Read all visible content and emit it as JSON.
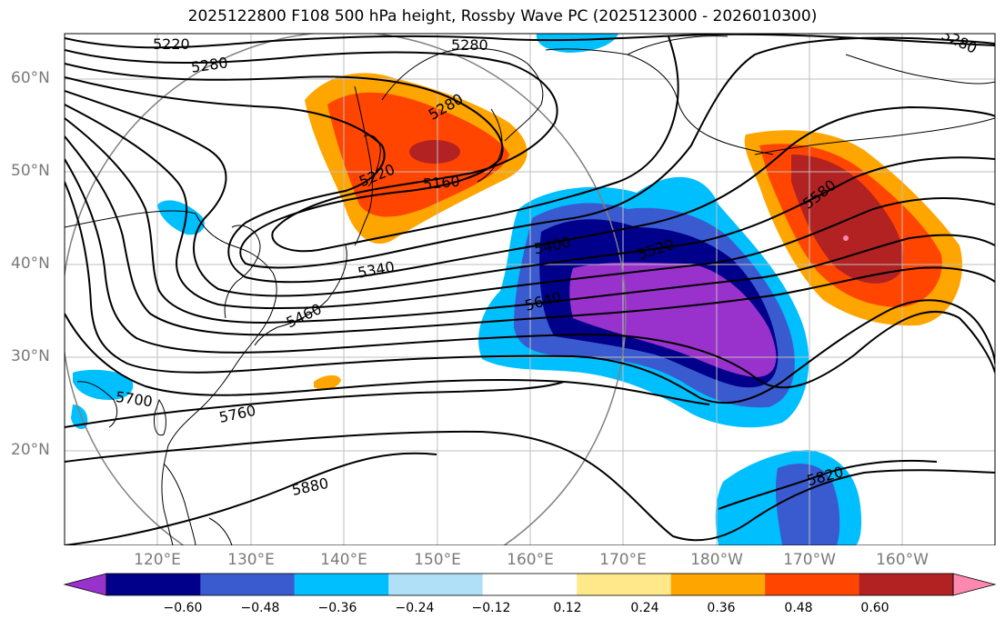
{
  "title": "2025122800 F108 500 hPa height, Rossby Wave PC (2025123000 - 2026010300)",
  "lat_labels": [
    "60°N",
    "50°N",
    "40°N",
    "30°N",
    "20°N"
  ],
  "lon_labels": [
    "120°E",
    "130°E",
    "140°E",
    "150°E",
    "160°E",
    "170°E",
    "180°W",
    "170°W",
    "160°W"
  ],
  "contour_labels": [
    "5220",
    "5280",
    "5280",
    "5280",
    "5280",
    "5220",
    "5160",
    "5400",
    "5520",
    "5340",
    "5580",
    "5640",
    "5460",
    "5700",
    "5760",
    "5880",
    "5820"
  ],
  "colorbar": {
    "ticks": [
      "−0.60",
      "−0.48",
      "−0.36",
      "−0.24",
      "−0.12",
      "0.12",
      "0.24",
      "0.36",
      "0.48",
      "0.60"
    ],
    "colors": [
      "#9932cc",
      "#00008b",
      "#3a5bd0",
      "#00bfff",
      "#b0e0f8",
      "#ffffff",
      "#ffe88a",
      "#ffa500",
      "#ff4500",
      "#b22222",
      "#ff88b0"
    ]
  },
  "map_style": {
    "gridline_color": "#bfbfbf",
    "contour_color": "#000000",
    "coast_color": "#000000",
    "projection_circle_color": "#808080"
  }
}
